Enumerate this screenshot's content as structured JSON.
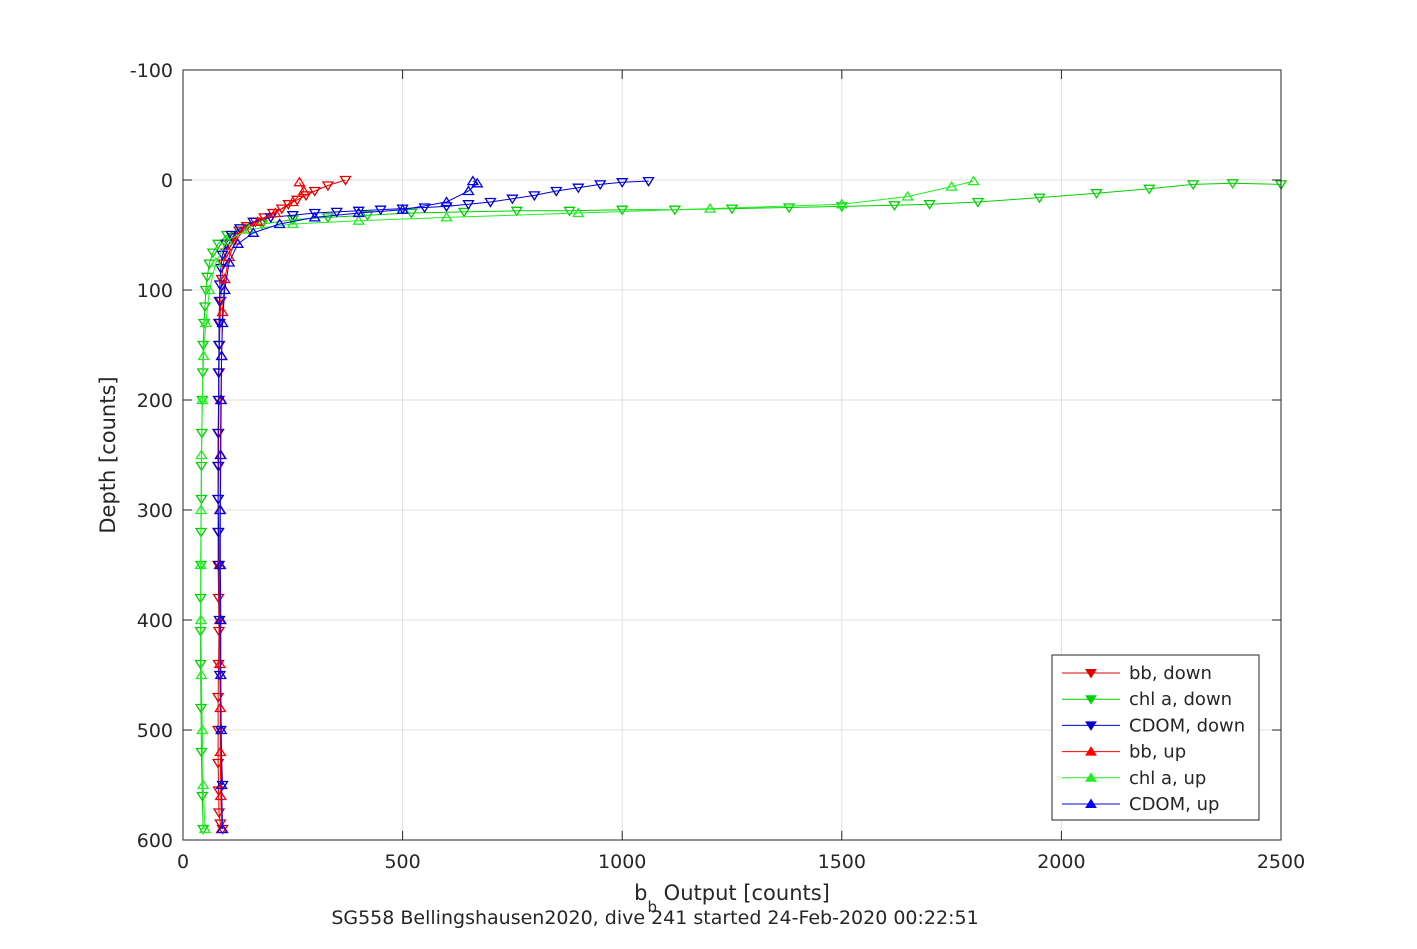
{
  "chart_data": {
    "type": "line",
    "title": "",
    "xlabel": {
      "main": "b",
      "sub": "b",
      "rest": " Output [counts]"
    },
    "ylabel": "Depth [counts]",
    "caption": "SG558 Bellingshausen2020, dive 241 started 24-Feb-2020 00:22:51",
    "xlim": [
      0,
      2500
    ],
    "ylim": [
      -100,
      600
    ],
    "y_reversed": true,
    "grid": true,
    "xticks": [
      0,
      500,
      1000,
      1500,
      2000,
      2500
    ],
    "yticks": [
      -100,
      0,
      100,
      200,
      300,
      400,
      500,
      600
    ],
    "xtick_labels": [
      "0",
      "500",
      "1000",
      "1500",
      "2000",
      "2500"
    ],
    "ytick_labels": [
      "-100",
      "0",
      "100",
      "200",
      "300",
      "400",
      "500",
      "600"
    ],
    "legend_position": "bottom-right",
    "series": [
      {
        "name": "bb, down",
        "color": "#e00000",
        "marker": "triangle-down",
        "x": [
          370,
          330,
          300,
          280,
          260,
          240,
          225,
          205,
          185,
          165,
          145,
          128,
          115,
          105,
          98,
          92,
          88,
          86,
          84,
          83,
          82,
          82,
          81,
          81,
          80,
          80,
          80,
          81,
          82,
          81,
          80,
          80,
          80,
          81,
          82,
          85,
          90
        ],
        "y": [
          0,
          5,
          10,
          14,
          18,
          22,
          26,
          30,
          34,
          38,
          42,
          46,
          52,
          58,
          66,
          76,
          90,
          110,
          130,
          150,
          175,
          200,
          230,
          260,
          290,
          320,
          350,
          380,
          410,
          440,
          470,
          500,
          530,
          555,
          575,
          585,
          590
        ]
      },
      {
        "name": "chl a, down",
        "color": "#00d000",
        "marker": "triangle-down",
        "x": [
          2500,
          2390,
          2300,
          2200,
          2080,
          1950,
          1810,
          1700,
          1620,
          1500,
          1380,
          1250,
          1120,
          1000,
          880,
          760,
          640,
          520,
          420,
          330,
          250,
          180,
          130,
          100,
          80,
          68,
          60,
          55,
          52,
          50,
          48,
          46,
          45,
          44,
          43,
          42,
          42,
          41,
          41,
          40,
          40,
          40,
          41,
          42,
          44,
          46
        ],
        "y": [
          4,
          3,
          4,
          8,
          12,
          16,
          20,
          22,
          23,
          24,
          25,
          26,
          27,
          27,
          28,
          28,
          29,
          30,
          32,
          34,
          36,
          40,
          44,
          50,
          58,
          66,
          76,
          88,
          100,
          115,
          130,
          150,
          175,
          200,
          230,
          260,
          290,
          320,
          350,
          380,
          410,
          440,
          480,
          520,
          560,
          590
        ]
      },
      {
        "name": "CDOM, down",
        "color": "#0000d0",
        "marker": "triangle-down",
        "x": [
          1060,
          1000,
          950,
          900,
          850,
          800,
          750,
          700,
          650,
          600,
          550,
          500,
          450,
          400,
          350,
          300,
          250,
          200,
          160,
          130,
          110,
          98,
          90,
          86,
          84,
          83,
          82,
          82,
          81,
          81,
          80,
          80,
          80,
          81,
          82,
          83,
          84,
          86,
          90
        ],
        "y": [
          1,
          2,
          4,
          7,
          10,
          14,
          17,
          20,
          22,
          24,
          25,
          26,
          27,
          28,
          29,
          30,
          32,
          34,
          38,
          44,
          50,
          58,
          68,
          80,
          95,
          110,
          130,
          150,
          175,
          200,
          230,
          260,
          290,
          320,
          350,
          400,
          450,
          500,
          550
        ]
      },
      {
        "name": "bb, up",
        "color": "#ff0000",
        "marker": "triangle-up",
        "x": [
          88,
          86,
          85,
          85,
          84,
          84,
          83,
          84,
          85,
          86,
          88,
          90,
          95,
          105,
          120,
          140,
          170,
          210,
          250,
          275,
          265
        ],
        "y": [
          590,
          560,
          520,
          480,
          440,
          400,
          350,
          300,
          250,
          200,
          160,
          120,
          90,
          70,
          55,
          45,
          38,
          30,
          20,
          10,
          2
        ]
      },
      {
        "name": "chl a, up",
        "color": "#22ee22",
        "marker": "triangle-up",
        "x": [
          50,
          46,
          44,
          42,
          41,
          40,
          41,
          42,
          44,
          47,
          52,
          60,
          75,
          100,
          150,
          250,
          400,
          600,
          900,
          1200,
          1500,
          1650,
          1750,
          1800
        ],
        "y": [
          590,
          550,
          500,
          450,
          400,
          350,
          300,
          250,
          200,
          160,
          130,
          100,
          75,
          55,
          45,
          40,
          37,
          34,
          30,
          26,
          22,
          15,
          6,
          1
        ]
      },
      {
        "name": "CDOM, up",
        "color": "#0000ee",
        "marker": "triangle-up",
        "x": [
          90,
          88,
          87,
          86,
          86,
          85,
          85,
          86,
          87,
          88,
          90,
          95,
          105,
          125,
          160,
          220,
          300,
          400,
          500,
          600,
          650,
          670,
          660
        ],
        "y": [
          590,
          550,
          500,
          450,
          400,
          350,
          300,
          250,
          200,
          160,
          130,
          100,
          75,
          58,
          48,
          40,
          34,
          30,
          27,
          20,
          10,
          3,
          1
        ]
      }
    ]
  }
}
